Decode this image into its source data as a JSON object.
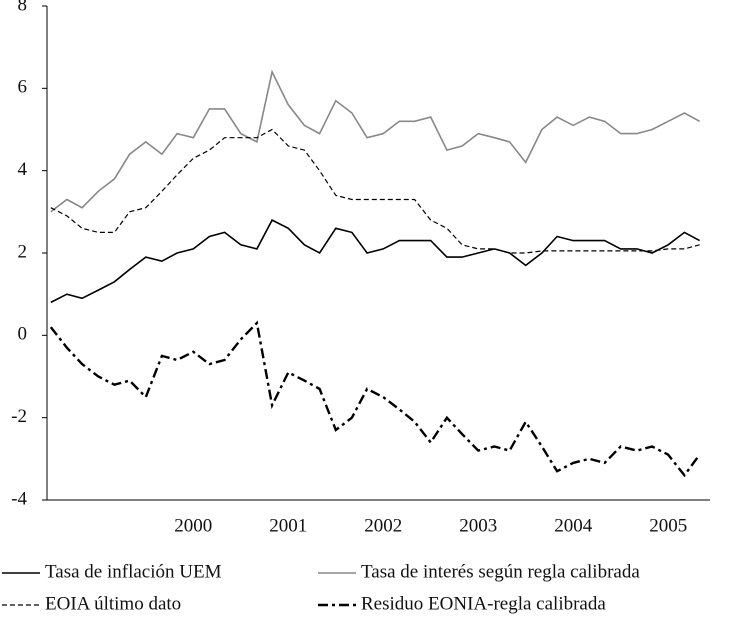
{
  "chart_data": {
    "type": "line",
    "x": [
      1999,
      1999.17,
      1999.33,
      1999.5,
      1999.67,
      1999.83,
      2000,
      2000.17,
      2000.33,
      2000.5,
      2000.67,
      2000.83,
      2001,
      2001.17,
      2001.33,
      2001.5,
      2001.67,
      2001.83,
      2002,
      2002.17,
      2002.33,
      2002.5,
      2002.67,
      2002.83,
      2003,
      2003.17,
      2003.33,
      2003.5,
      2003.67,
      2003.83,
      2004,
      2004.17,
      2004.33,
      2004.5,
      2004.67,
      2004.83,
      2005,
      2005.17,
      2005.33,
      2005.5,
      2005.67,
      2005.83
    ],
    "series": [
      {
        "name": "Tasa de inflación UEM",
        "color": "#000000",
        "dash": "solid",
        "values": [
          0.8,
          1.0,
          0.9,
          1.1,
          1.3,
          1.6,
          1.9,
          1.8,
          2.0,
          2.1,
          2.4,
          2.5,
          2.2,
          2.1,
          2.8,
          2.6,
          2.2,
          2.0,
          2.6,
          2.5,
          2.0,
          2.1,
          2.3,
          2.3,
          2.3,
          1.9,
          1.9,
          2.0,
          2.1,
          2.0,
          1.7,
          2.0,
          2.4,
          2.3,
          2.3,
          2.3,
          2.1,
          2.1,
          2.0,
          2.2,
          2.5,
          2.3
        ]
      },
      {
        "name": "Tasa de interés según regla calibrada",
        "color": "#888888",
        "dash": "solid",
        "values": [
          3.0,
          3.3,
          3.1,
          3.5,
          3.8,
          4.4,
          4.7,
          4.4,
          4.9,
          4.8,
          5.5,
          5.5,
          4.9,
          4.7,
          6.4,
          5.6,
          5.1,
          4.9,
          5.7,
          5.4,
          4.8,
          4.9,
          5.2,
          5.2,
          5.3,
          4.5,
          4.6,
          4.9,
          4.8,
          4.7,
          4.2,
          5.0,
          5.3,
          5.1,
          5.3,
          5.2,
          4.9,
          4.9,
          5.0,
          5.2,
          5.4,
          5.2
        ]
      },
      {
        "name": "EOIA último dato",
        "color": "#000000",
        "dash": "dashed",
        "values": [
          3.1,
          2.9,
          2.6,
          2.5,
          2.5,
          3.0,
          3.1,
          3.5,
          3.9,
          4.3,
          4.5,
          4.8,
          4.8,
          4.8,
          5.0,
          4.6,
          4.5,
          4.0,
          3.4,
          3.3,
          3.3,
          3.3,
          3.3,
          3.3,
          2.8,
          2.6,
          2.2,
          2.1,
          2.1,
          2.0,
          2.0,
          2.05,
          2.05,
          2.05,
          2.05,
          2.05,
          2.05,
          2.05,
          2.05,
          2.1,
          2.1,
          2.2
        ]
      },
      {
        "name": "Residuo EONIA-regla calibrada",
        "color": "#000000",
        "dash": "dashdot",
        "values": [
          0.2,
          -0.3,
          -0.7,
          -1.0,
          -1.2,
          -1.1,
          -1.5,
          -0.5,
          -0.6,
          -0.4,
          -0.7,
          -0.6,
          -0.1,
          0.3,
          -1.7,
          -0.9,
          -1.1,
          -1.3,
          -2.3,
          -2.0,
          -1.3,
          -1.5,
          -1.8,
          -2.1,
          -2.6,
          -2.0,
          -2.4,
          -2.8,
          -2.7,
          -2.8,
          -2.1,
          -2.7,
          -3.3,
          -3.1,
          -3.0,
          -3.1,
          -2.7,
          -2.8,
          -2.7,
          -2.9,
          -3.4,
          -2.9
        ]
      }
    ],
    "xlim": [
      1998.96,
      2005.94
    ],
    "xticks": [
      {
        "value": 2000.5,
        "label": "2000"
      },
      {
        "value": 2001.5,
        "label": "2001"
      },
      {
        "value": 2002.5,
        "label": "2002"
      },
      {
        "value": 2003.5,
        "label": "2003"
      },
      {
        "value": 2004.5,
        "label": "2004"
      },
      {
        "value": 2005.5,
        "label": "2005"
      }
    ],
    "ylim": [
      -4,
      8
    ],
    "yticks": [
      -4,
      -2,
      0,
      2,
      4,
      6,
      8
    ],
    "grid": false,
    "legend": "bottom"
  }
}
